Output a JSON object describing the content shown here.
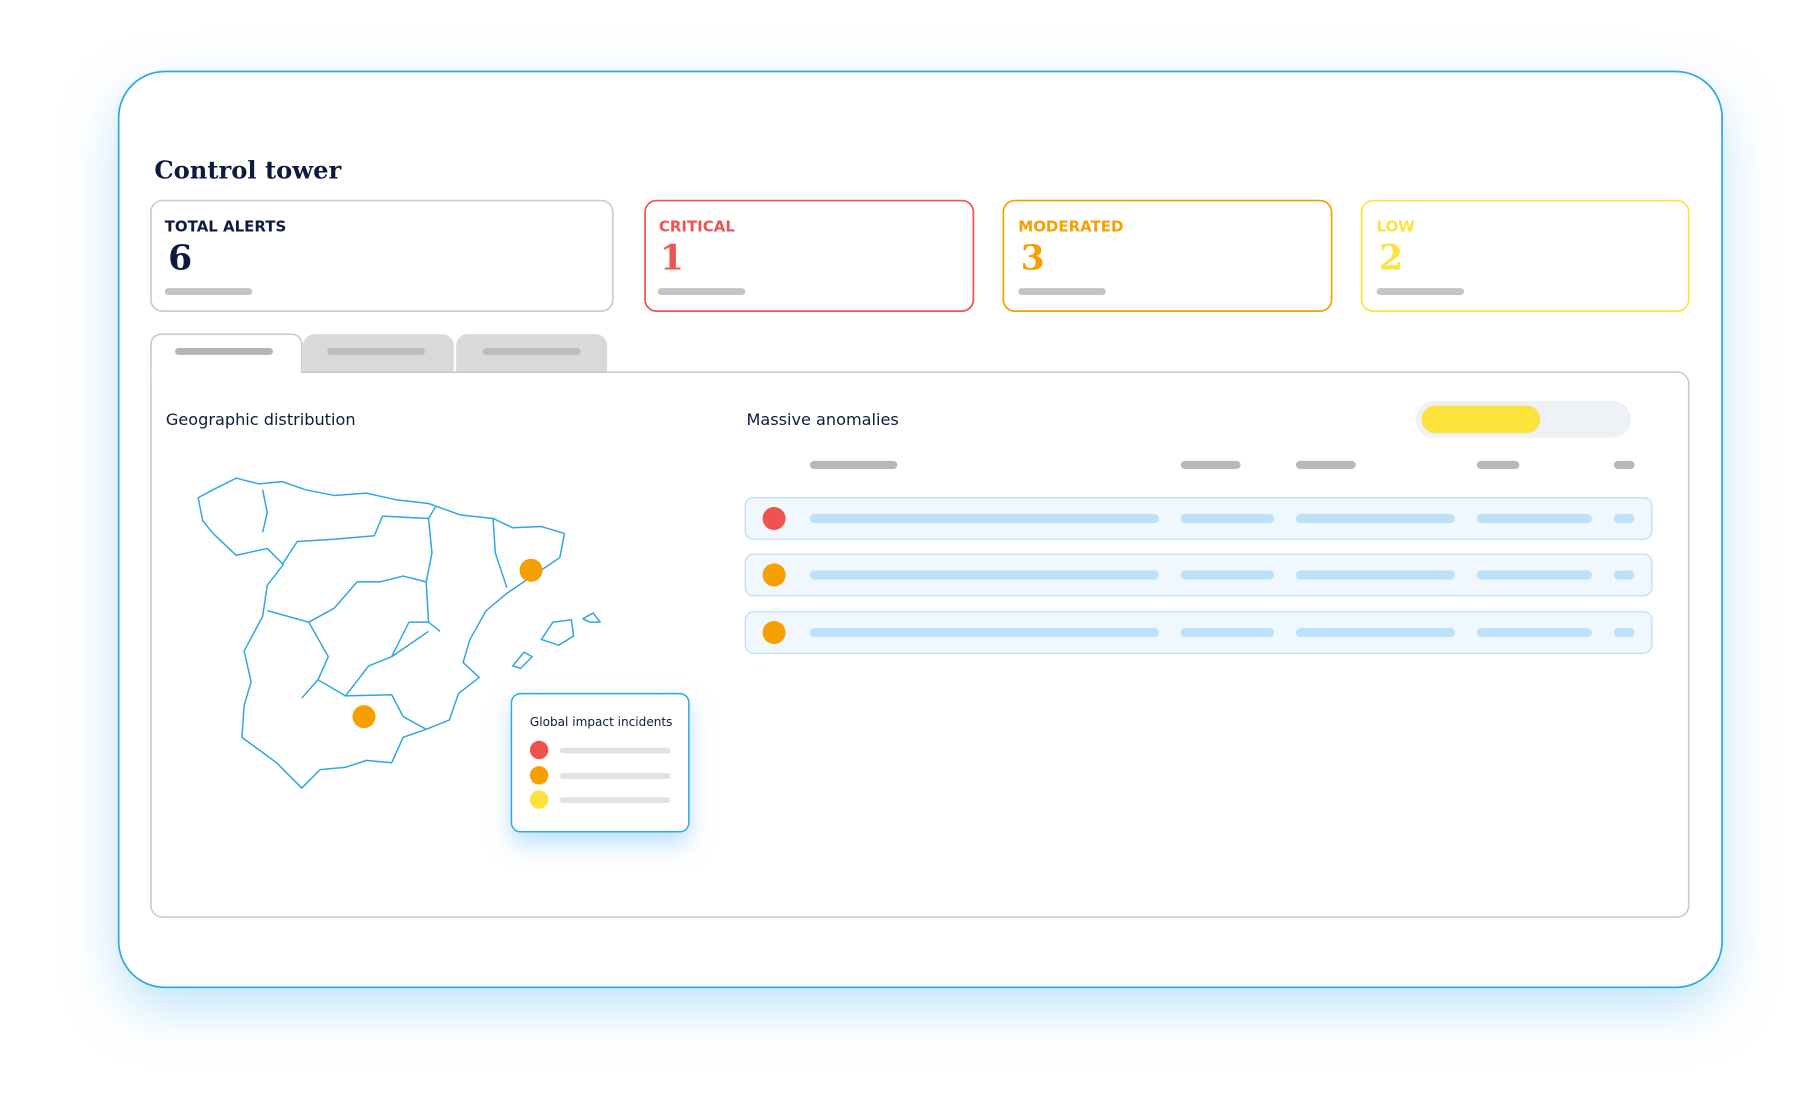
{
  "header": {
    "title": "Control tower"
  },
  "cards": [
    {
      "label": "TOTAL ALERTS",
      "value": 6
    },
    {
      "label": "CRITICAL",
      "value": 1
    },
    {
      "label": "MODERATED",
      "value": 3
    },
    {
      "label": "LOW",
      "value": 2
    }
  ],
  "sections": {
    "map_title": "Geographic distribution",
    "anomalies_title": "Massive anomalies"
  },
  "legend": {
    "title": "Global impact incidents"
  }
}
